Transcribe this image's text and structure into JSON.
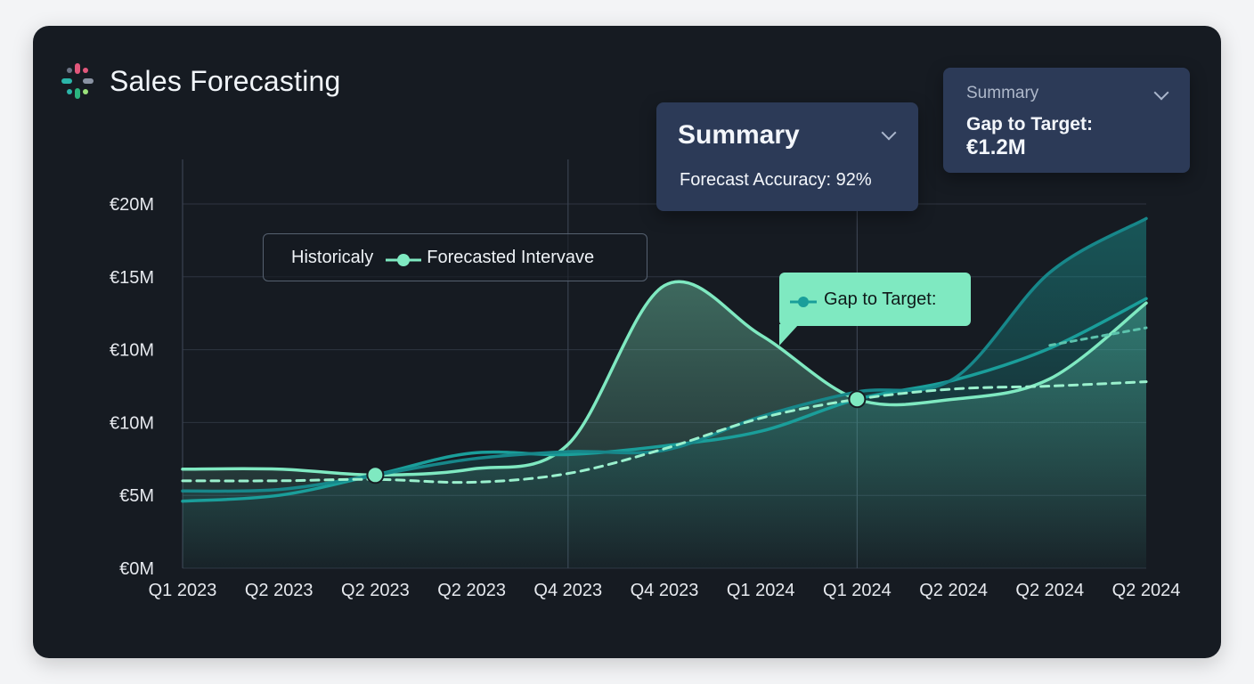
{
  "header": {
    "title": "Sales Forecasting"
  },
  "colors": {
    "background": "#161b22",
    "historical": "#7fe9c1",
    "forecast": "#1a9e9a",
    "panel": "#2c3a57",
    "callout": "#7fe9c1"
  },
  "legend": {
    "historical_label": "Historicaly",
    "forecast_label": "Forecasted Intervave"
  },
  "summary_panel_main": {
    "title": "Summary",
    "metric": "Forecast Accuracy: 92%"
  },
  "summary_panel_small": {
    "title": "Summary",
    "metric_label": "Gap to Target:",
    "metric_value": "€1.2M"
  },
  "callout": {
    "label": "Gap to Target:"
  },
  "chart_data": {
    "type": "line",
    "title": "",
    "xlabel": "",
    "ylabel": "",
    "categories": [
      "Q1 2023",
      "Q2 2023",
      "Q2 2023",
      "Q2 2023",
      "Q4 2023",
      "Q4 2023",
      "Q1 2024",
      "Q1 2024",
      "Q2 2024",
      "Q2 2024",
      "Q2 2024"
    ],
    "y_tick_labels": [
      "€0M",
      "€5M",
      "€10M",
      "€10M",
      "€15M",
      "€20M"
    ],
    "ylim": [
      0,
      25
    ],
    "grid": true,
    "legend_position": "top-left",
    "series": [
      {
        "name": "Historicaly",
        "style": "solid",
        "values": [
          6.8,
          6.8,
          6.4,
          6.8,
          8.5,
          19.4,
          16.0,
          11.6,
          11.6,
          13.0,
          18.2
        ]
      },
      {
        "name": "Forecasted Intervave",
        "style": "solid",
        "values": [
          4.6,
          5.0,
          6.4,
          7.9,
          7.8,
          8.4,
          9.4,
          11.6,
          12.9,
          15.1,
          18.5
        ]
      },
      {
        "style": "solid",
        "values": [
          5.3,
          5.4,
          6.4,
          7.5,
          8.0,
          8.1,
          10.4,
          12.1,
          13.0,
          20.3,
          24.0
        ]
      },
      {
        "style": "dashed",
        "values": [
          6.0,
          6.0,
          6.1,
          5.9,
          6.5,
          8.2,
          10.3,
          11.6,
          12.3,
          12.5,
          12.8
        ]
      },
      {
        "style": "dashed",
        "values": [
          null,
          null,
          null,
          null,
          null,
          null,
          null,
          null,
          null,
          15.3,
          16.5
        ]
      }
    ],
    "highlight_points": [
      {
        "category_index": 2,
        "value": 6.4
      },
      {
        "category_index": 7,
        "value": 11.6
      }
    ]
  }
}
